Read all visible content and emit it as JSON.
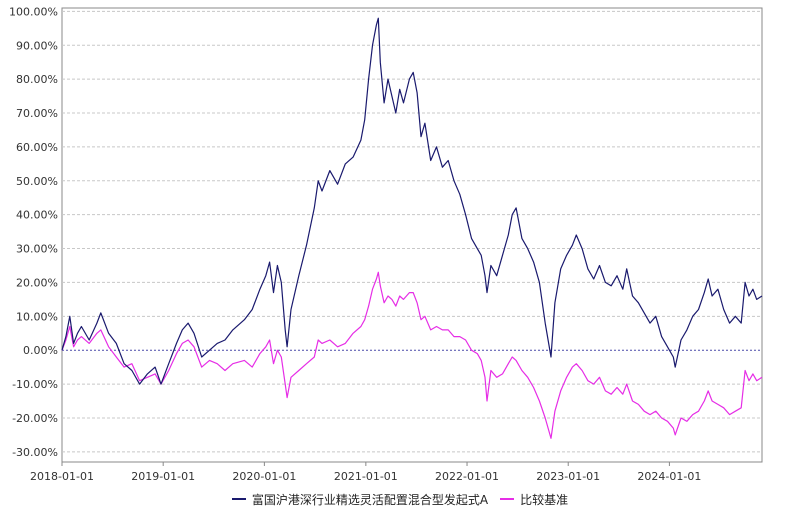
{
  "chart_data": {
    "type": "line",
    "x_ticks": [
      "2018-01-01",
      "2019-01-01",
      "2020-01-01",
      "2021-01-01",
      "2022-01-01",
      "2023-01-01",
      "2024-01-01"
    ],
    "y_ticks": [
      "100.00%",
      "90.00%",
      "80.00%",
      "70.00%",
      "60.00%",
      "50.00%",
      "40.00%",
      "30.00%",
      "20.00%",
      "10.00%",
      "0.00%",
      "-10.00%",
      "-20.00%",
      "-30.00%"
    ],
    "ylim": [
      -33,
      101
    ],
    "x_range": [
      "2018-01-01",
      "2024-11-30"
    ],
    "grid": true,
    "legend_position": "bottom",
    "series": [
      {
        "name": "富国沪港深行业精选灵活配置混合型发起式A",
        "color": "#1a1a6e",
        "points": [
          [
            "2018-01-01",
            0
          ],
          [
            "2018-01-15",
            4
          ],
          [
            "2018-01-29",
            10
          ],
          [
            "2018-02-12",
            2
          ],
          [
            "2018-02-26",
            5
          ],
          [
            "2018-03-12",
            7
          ],
          [
            "2018-04-09",
            3
          ],
          [
            "2018-05-07",
            8
          ],
          [
            "2018-05-21",
            11
          ],
          [
            "2018-06-18",
            5
          ],
          [
            "2018-07-16",
            2
          ],
          [
            "2018-08-13",
            -4
          ],
          [
            "2018-09-10",
            -6
          ],
          [
            "2018-10-08",
            -10
          ],
          [
            "2018-11-05",
            -7
          ],
          [
            "2018-12-03",
            -5
          ],
          [
            "2018-12-24",
            -10
          ],
          [
            "2019-01-21",
            -4
          ],
          [
            "2019-02-18",
            2
          ],
          [
            "2019-03-11",
            6
          ],
          [
            "2019-04-01",
            8
          ],
          [
            "2019-04-22",
            5
          ],
          [
            "2019-05-20",
            -2
          ],
          [
            "2019-06-17",
            0
          ],
          [
            "2019-07-15",
            2
          ],
          [
            "2019-08-12",
            3
          ],
          [
            "2019-09-09",
            6
          ],
          [
            "2019-10-21",
            9
          ],
          [
            "2019-11-18",
            12
          ],
          [
            "2019-12-16",
            18
          ],
          [
            "2020-01-06",
            22
          ],
          [
            "2020-01-20",
            26
          ],
          [
            "2020-02-03",
            17
          ],
          [
            "2020-02-17",
            25
          ],
          [
            "2020-03-02",
            20
          ],
          [
            "2020-03-16",
            6
          ],
          [
            "2020-03-23",
            1
          ],
          [
            "2020-04-06",
            12
          ],
          [
            "2020-05-04",
            22
          ],
          [
            "2020-06-01",
            31
          ],
          [
            "2020-06-29",
            42
          ],
          [
            "2020-07-13",
            50
          ],
          [
            "2020-07-27",
            47
          ],
          [
            "2020-08-24",
            53
          ],
          [
            "2020-09-21",
            49
          ],
          [
            "2020-10-19",
            55
          ],
          [
            "2020-11-16",
            57
          ],
          [
            "2020-12-14",
            62
          ],
          [
            "2020-12-28",
            68
          ],
          [
            "2021-01-11",
            80
          ],
          [
            "2021-01-25",
            90
          ],
          [
            "2021-02-08",
            96
          ],
          [
            "2021-02-15",
            98
          ],
          [
            "2021-02-22",
            85
          ],
          [
            "2021-03-08",
            73
          ],
          [
            "2021-03-22",
            80
          ],
          [
            "2021-04-05",
            75
          ],
          [
            "2021-04-19",
            70
          ],
          [
            "2021-05-03",
            77
          ],
          [
            "2021-05-17",
            73
          ],
          [
            "2021-06-07",
            80
          ],
          [
            "2021-06-21",
            82
          ],
          [
            "2021-07-05",
            76
          ],
          [
            "2021-07-19",
            63
          ],
          [
            "2021-08-02",
            67
          ],
          [
            "2021-08-23",
            56
          ],
          [
            "2021-09-13",
            60
          ],
          [
            "2021-10-04",
            54
          ],
          [
            "2021-10-25",
            56
          ],
          [
            "2021-11-15",
            50
          ],
          [
            "2021-12-06",
            46
          ],
          [
            "2021-12-27",
            40
          ],
          [
            "2022-01-17",
            33
          ],
          [
            "2022-02-07",
            30
          ],
          [
            "2022-02-21",
            28
          ],
          [
            "2022-03-07",
            22
          ],
          [
            "2022-03-14",
            17
          ],
          [
            "2022-03-28",
            25
          ],
          [
            "2022-04-18",
            22
          ],
          [
            "2022-05-09",
            28
          ],
          [
            "2022-05-30",
            34
          ],
          [
            "2022-06-13",
            40
          ],
          [
            "2022-06-27",
            42
          ],
          [
            "2022-07-18",
            33
          ],
          [
            "2022-08-08",
            30
          ],
          [
            "2022-08-29",
            26
          ],
          [
            "2022-09-19",
            20
          ],
          [
            "2022-10-10",
            8
          ],
          [
            "2022-10-31",
            -2
          ],
          [
            "2022-11-14",
            14
          ],
          [
            "2022-12-05",
            24
          ],
          [
            "2022-12-26",
            28
          ],
          [
            "2023-01-16",
            31
          ],
          [
            "2023-01-30",
            34
          ],
          [
            "2023-02-20",
            30
          ],
          [
            "2023-03-13",
            24
          ],
          [
            "2023-04-03",
            21
          ],
          [
            "2023-04-24",
            25
          ],
          [
            "2023-05-15",
            20
          ],
          [
            "2023-06-05",
            19
          ],
          [
            "2023-06-26",
            22
          ],
          [
            "2023-07-17",
            18
          ],
          [
            "2023-07-31",
            24
          ],
          [
            "2023-08-21",
            16
          ],
          [
            "2023-09-11",
            14
          ],
          [
            "2023-10-02",
            11
          ],
          [
            "2023-10-23",
            8
          ],
          [
            "2023-11-13",
            10
          ],
          [
            "2023-12-04",
            4
          ],
          [
            "2023-12-25",
            1
          ],
          [
            "2024-01-15",
            -2
          ],
          [
            "2024-01-22",
            -5
          ],
          [
            "2024-02-12",
            3
          ],
          [
            "2024-03-04",
            6
          ],
          [
            "2024-03-25",
            10
          ],
          [
            "2024-04-15",
            12
          ],
          [
            "2024-05-06",
            17
          ],
          [
            "2024-05-20",
            21
          ],
          [
            "2024-06-03",
            16
          ],
          [
            "2024-06-24",
            18
          ],
          [
            "2024-07-15",
            12
          ],
          [
            "2024-08-05",
            8
          ],
          [
            "2024-08-26",
            10
          ],
          [
            "2024-09-16",
            8
          ],
          [
            "2024-09-30",
            20
          ],
          [
            "2024-10-14",
            16
          ],
          [
            "2024-10-28",
            18
          ],
          [
            "2024-11-11",
            15
          ],
          [
            "2024-11-30",
            16
          ]
        ]
      },
      {
        "name": "比较基准",
        "color": "#e62ee6",
        "points": [
          [
            "2018-01-01",
            0
          ],
          [
            "2018-01-15",
            3
          ],
          [
            "2018-01-29",
            7
          ],
          [
            "2018-02-12",
            1
          ],
          [
            "2018-02-26",
            3
          ],
          [
            "2018-03-12",
            4
          ],
          [
            "2018-04-09",
            2
          ],
          [
            "2018-05-07",
            5
          ],
          [
            "2018-05-21",
            6
          ],
          [
            "2018-06-18",
            1
          ],
          [
            "2018-07-16",
            -2
          ],
          [
            "2018-08-13",
            -5
          ],
          [
            "2018-09-10",
            -4
          ],
          [
            "2018-10-08",
            -9
          ],
          [
            "2018-11-05",
            -8
          ],
          [
            "2018-12-03",
            -7
          ],
          [
            "2018-12-24",
            -10
          ],
          [
            "2019-01-21",
            -6
          ],
          [
            "2019-02-18",
            -1
          ],
          [
            "2019-03-11",
            2
          ],
          [
            "2019-04-01",
            3
          ],
          [
            "2019-04-22",
            1
          ],
          [
            "2019-05-20",
            -5
          ],
          [
            "2019-06-17",
            -3
          ],
          [
            "2019-07-15",
            -4
          ],
          [
            "2019-08-12",
            -6
          ],
          [
            "2019-09-09",
            -4
          ],
          [
            "2019-10-21",
            -3
          ],
          [
            "2019-11-18",
            -5
          ],
          [
            "2019-12-16",
            -1
          ],
          [
            "2020-01-06",
            1
          ],
          [
            "2020-01-20",
            3
          ],
          [
            "2020-02-03",
            -4
          ],
          [
            "2020-02-17",
            0
          ],
          [
            "2020-03-02",
            -2
          ],
          [
            "2020-03-16",
            -10
          ],
          [
            "2020-03-23",
            -14
          ],
          [
            "2020-04-06",
            -8
          ],
          [
            "2020-05-04",
            -6
          ],
          [
            "2020-06-01",
            -4
          ],
          [
            "2020-06-29",
            -2
          ],
          [
            "2020-07-13",
            3
          ],
          [
            "2020-07-27",
            2
          ],
          [
            "2020-08-24",
            3
          ],
          [
            "2020-09-21",
            1
          ],
          [
            "2020-10-19",
            2
          ],
          [
            "2020-11-16",
            5
          ],
          [
            "2020-12-14",
            7
          ],
          [
            "2020-12-28",
            9
          ],
          [
            "2021-01-11",
            13
          ],
          [
            "2021-01-25",
            18
          ],
          [
            "2021-02-08",
            21
          ],
          [
            "2021-02-15",
            23
          ],
          [
            "2021-02-22",
            19
          ],
          [
            "2021-03-08",
            14
          ],
          [
            "2021-03-22",
            16
          ],
          [
            "2021-04-05",
            15
          ],
          [
            "2021-04-19",
            13
          ],
          [
            "2021-05-03",
            16
          ],
          [
            "2021-05-17",
            15
          ],
          [
            "2021-06-07",
            17
          ],
          [
            "2021-06-21",
            17
          ],
          [
            "2021-07-05",
            14
          ],
          [
            "2021-07-19",
            9
          ],
          [
            "2021-08-02",
            10
          ],
          [
            "2021-08-23",
            6
          ],
          [
            "2021-09-13",
            7
          ],
          [
            "2021-10-04",
            6
          ],
          [
            "2021-10-25",
            6
          ],
          [
            "2021-11-15",
            4
          ],
          [
            "2021-12-06",
            4
          ],
          [
            "2021-12-27",
            3
          ],
          [
            "2022-01-17",
            0
          ],
          [
            "2022-02-07",
            -1
          ],
          [
            "2022-02-21",
            -3
          ],
          [
            "2022-03-07",
            -8
          ],
          [
            "2022-03-14",
            -15
          ],
          [
            "2022-03-28",
            -6
          ],
          [
            "2022-04-18",
            -8
          ],
          [
            "2022-05-09",
            -7
          ],
          [
            "2022-05-30",
            -4
          ],
          [
            "2022-06-13",
            -2
          ],
          [
            "2022-06-27",
            -3
          ],
          [
            "2022-07-18",
            -6
          ],
          [
            "2022-08-08",
            -8
          ],
          [
            "2022-08-29",
            -11
          ],
          [
            "2022-09-19",
            -15
          ],
          [
            "2022-10-10",
            -20
          ],
          [
            "2022-10-31",
            -26
          ],
          [
            "2022-11-14",
            -18
          ],
          [
            "2022-12-05",
            -12
          ],
          [
            "2022-12-26",
            -8
          ],
          [
            "2023-01-16",
            -5
          ],
          [
            "2023-01-30",
            -4
          ],
          [
            "2023-02-20",
            -6
          ],
          [
            "2023-03-13",
            -9
          ],
          [
            "2023-04-03",
            -10
          ],
          [
            "2023-04-24",
            -8
          ],
          [
            "2023-05-15",
            -12
          ],
          [
            "2023-06-05",
            -13
          ],
          [
            "2023-06-26",
            -11
          ],
          [
            "2023-07-17",
            -13
          ],
          [
            "2023-07-31",
            -10
          ],
          [
            "2023-08-21",
            -15
          ],
          [
            "2023-09-11",
            -16
          ],
          [
            "2023-10-02",
            -18
          ],
          [
            "2023-10-23",
            -19
          ],
          [
            "2023-11-13",
            -18
          ],
          [
            "2023-12-04",
            -20
          ],
          [
            "2023-12-25",
            -21
          ],
          [
            "2024-01-15",
            -23
          ],
          [
            "2024-01-22",
            -25
          ],
          [
            "2024-02-12",
            -20
          ],
          [
            "2024-03-04",
            -21
          ],
          [
            "2024-03-25",
            -19
          ],
          [
            "2024-04-15",
            -18
          ],
          [
            "2024-05-06",
            -15
          ],
          [
            "2024-05-20",
            -12
          ],
          [
            "2024-06-03",
            -15
          ],
          [
            "2024-06-24",
            -16
          ],
          [
            "2024-07-15",
            -17
          ],
          [
            "2024-08-05",
            -19
          ],
          [
            "2024-08-26",
            -18
          ],
          [
            "2024-09-16",
            -17
          ],
          [
            "2024-09-30",
            -6
          ],
          [
            "2024-10-14",
            -9
          ],
          [
            "2024-10-28",
            -7
          ],
          [
            "2024-11-11",
            -9
          ],
          [
            "2024-11-30",
            -8
          ]
        ]
      }
    ]
  }
}
